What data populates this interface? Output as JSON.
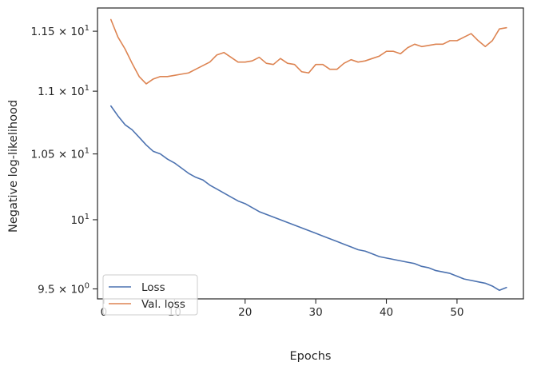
{
  "chart_data": {
    "type": "line",
    "title": "",
    "xlabel": "Epochs",
    "ylabel": "Negative log-likelihood",
    "y_scale": "log",
    "xlim": [
      -0.9,
      59.4
    ],
    "ylim": [
      9.43,
      11.7
    ],
    "x_ticks": [
      {
        "value": 0,
        "label": "0"
      },
      {
        "value": 10,
        "label": "10"
      },
      {
        "value": 20,
        "label": "20"
      },
      {
        "value": 30,
        "label": "30"
      },
      {
        "value": 40,
        "label": "40"
      },
      {
        "value": 50,
        "label": "50"
      }
    ],
    "y_ticks": [
      {
        "value": 9.5,
        "mantissa": "9.5",
        "exponent": "0"
      },
      {
        "value": 10,
        "mantissa": "",
        "exponent": "1"
      },
      {
        "value": 10.5,
        "mantissa": "1.05",
        "exponent": "1"
      },
      {
        "value": 11,
        "mantissa": "1.1",
        "exponent": "1"
      },
      {
        "value": 11.5,
        "mantissa": "1.15",
        "exponent": "1"
      }
    ],
    "legend_position": "lower-left",
    "series": [
      {
        "name": "Loss",
        "color": "#4c72b0",
        "x": [
          1,
          2,
          3,
          4,
          5,
          6,
          7,
          8,
          9,
          10,
          11,
          12,
          13,
          14,
          15,
          16,
          17,
          18,
          19,
          20,
          21,
          22,
          23,
          24,
          25,
          26,
          27,
          28,
          29,
          30,
          31,
          32,
          33,
          34,
          35,
          36,
          37,
          38,
          39,
          40,
          41,
          42,
          43,
          44,
          45,
          46,
          47,
          48,
          49,
          50,
          51,
          52,
          53,
          54,
          55,
          56,
          57
        ],
        "values": [
          10.88,
          10.8,
          10.73,
          10.69,
          10.63,
          10.57,
          10.52,
          10.5,
          10.46,
          10.43,
          10.39,
          10.35,
          10.32,
          10.3,
          10.26,
          10.23,
          10.2,
          10.17,
          10.14,
          10.12,
          10.09,
          10.06,
          10.04,
          10.02,
          10.0,
          9.98,
          9.96,
          9.94,
          9.92,
          9.9,
          9.88,
          9.86,
          9.84,
          9.82,
          9.8,
          9.78,
          9.77,
          9.75,
          9.73,
          9.72,
          9.71,
          9.7,
          9.69,
          9.68,
          9.66,
          9.65,
          9.63,
          9.62,
          9.61,
          9.59,
          9.57,
          9.56,
          9.55,
          9.54,
          9.52,
          9.49,
          9.51
        ]
      },
      {
        "name": "Val. loss",
        "color": "#dd8452",
        "x": [
          1,
          2,
          3,
          4,
          5,
          6,
          7,
          8,
          9,
          10,
          11,
          12,
          13,
          14,
          15,
          16,
          17,
          18,
          19,
          20,
          21,
          22,
          23,
          24,
          25,
          26,
          27,
          28,
          29,
          30,
          31,
          32,
          33,
          34,
          35,
          36,
          37,
          38,
          39,
          40,
          41,
          42,
          43,
          44,
          45,
          46,
          47,
          48,
          49,
          50,
          51,
          52,
          53,
          54,
          55,
          56,
          57
        ],
        "values": [
          11.6,
          11.45,
          11.35,
          11.23,
          11.12,
          11.06,
          11.1,
          11.12,
          11.12,
          11.13,
          11.14,
          11.15,
          11.18,
          11.21,
          11.24,
          11.3,
          11.32,
          11.28,
          11.24,
          11.24,
          11.25,
          11.28,
          11.23,
          11.22,
          11.27,
          11.23,
          11.22,
          11.16,
          11.15,
          11.22,
          11.22,
          11.18,
          11.18,
          11.23,
          11.26,
          11.24,
          11.25,
          11.27,
          11.29,
          11.33,
          11.33,
          11.31,
          11.36,
          11.39,
          11.37,
          11.38,
          11.39,
          11.39,
          11.42,
          11.42,
          11.45,
          11.48,
          11.42,
          11.37,
          11.42,
          11.52,
          11.53
        ]
      }
    ]
  }
}
